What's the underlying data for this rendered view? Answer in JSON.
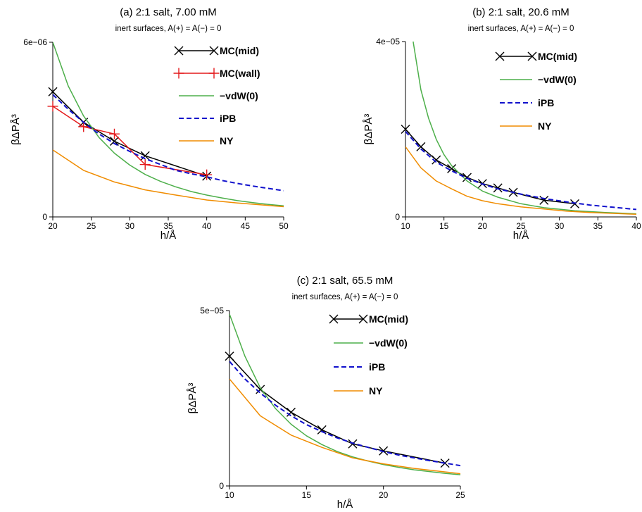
{
  "chart_data": [
    {
      "type": "line",
      "panel": "(a)",
      "title": "(a)    2:1 salt, 7.00 mM",
      "subtitle": "inert surfaces, A(+) = A(−) = 0",
      "xlabel": "h/Å",
      "ylabel": "βΔPÅ³",
      "xlim": [
        20,
        50
      ],
      "ylim": [
        0,
        6e-06
      ],
      "xticks": [
        20,
        25,
        30,
        35,
        40,
        45,
        50
      ],
      "yticks": [
        {
          "value": 0,
          "label": "0"
        },
        {
          "value": 6e-06,
          "label": "6e−06"
        }
      ],
      "legend_position": "top-right",
      "series": [
        {
          "name": "MC(mid)",
          "color": "#000000",
          "dash": "",
          "marker": "x",
          "x": [
            20,
            24,
            28,
            32,
            40
          ],
          "y": [
            4.3e-06,
            3.25e-06,
            2.6e-06,
            2.1e-06,
            1.4e-06
          ]
        },
        {
          "name": "MC(wall)",
          "color": "#e41a1c",
          "dash": "",
          "marker": "plus",
          "x": [
            20,
            24,
            28,
            32,
            40
          ],
          "y": [
            3.8e-06,
            3.1e-06,
            2.85e-06,
            1.8e-06,
            1.45e-06
          ]
        },
        {
          "name": "−vdW(0)",
          "color": "#4daf4a",
          "dash": "",
          "marker": "",
          "x": [
            20,
            22,
            24,
            26,
            28,
            30,
            32,
            34,
            36,
            38,
            40,
            42,
            44,
            46,
            48,
            50
          ],
          "y": [
            6e-06,
            4.5e-06,
            3.47e-06,
            2.73e-06,
            2.19e-06,
            1.78e-06,
            1.46e-06,
            1.22e-06,
            1.03e-06,
            8.7e-07,
            7.5e-07,
            6.5e-07,
            5.6e-07,
            4.9e-07,
            4.3e-07,
            3.8e-07
          ]
        },
        {
          "name": "iPB",
          "color": "#1010cc",
          "dash": "7,4",
          "marker": "",
          "x": [
            20,
            22,
            24,
            26,
            28,
            30,
            32,
            34,
            36,
            38,
            40,
            42,
            44,
            46,
            48,
            50
          ],
          "y": [
            4.2e-06,
            3.7e-06,
            3.25e-06,
            2.85e-06,
            2.52e-06,
            2.25e-06,
            2e-06,
            1.8e-06,
            1.6e-06,
            1.48e-06,
            1.38e-06,
            1.25e-06,
            1.15e-06,
            1.06e-06,
            9.8e-07,
            9e-07
          ]
        },
        {
          "name": "NY",
          "color": "#f08c00",
          "dash": "",
          "marker": "",
          "x": [
            20,
            24,
            28,
            32,
            36,
            40,
            44,
            50
          ],
          "y": [
            2.3e-06,
            1.6e-06,
            1.2e-06,
            9.3e-07,
            7.5e-07,
            5.8e-07,
            4.8e-07,
            3.5e-07
          ]
        }
      ]
    },
    {
      "type": "line",
      "panel": "(b)",
      "title": "(b)    2:1 salt, 20.6 mM",
      "subtitle": "inert surfaces, A(+) = A(−) = 0",
      "xlabel": "h/Å",
      "ylabel": "βΔPÅ³",
      "xlim": [
        10,
        40
      ],
      "ylim": [
        0,
        4e-05
      ],
      "xticks": [
        10,
        15,
        20,
        25,
        30,
        35,
        40
      ],
      "yticks": [
        {
          "value": 0,
          "label": "0"
        },
        {
          "value": 4e-05,
          "label": "4e−05"
        }
      ],
      "legend_position": "top-right",
      "series": [
        {
          "name": "MC(mid)",
          "color": "#000000",
          "dash": "",
          "marker": "x",
          "x": [
            10,
            12,
            14,
            16,
            18,
            20,
            22,
            24,
            28,
            32
          ],
          "y": [
            2e-05,
            1.6e-05,
            1.3e-05,
            1.1e-05,
            9e-06,
            7.6e-06,
            6.6e-06,
            5.6e-06,
            3.8e-06,
            3e-06
          ]
        },
        {
          "name": "−vdW(0)",
          "color": "#4daf4a",
          "dash": "",
          "marker": "",
          "x": [
            11,
            12,
            13,
            14,
            15,
            16,
            18,
            20,
            22,
            25,
            28,
            32,
            36,
            40
          ],
          "y": [
            4e-05,
            2.9e-05,
            2.25e-05,
            1.77e-05,
            1.42e-05,
            1.17e-05,
            8.2e-06,
            5.9e-06,
            4.5e-06,
            3e-06,
            2.1e-06,
            1.4e-06,
            1e-06,
            7e-07
          ]
        },
        {
          "name": "iPB",
          "color": "#1010cc",
          "dash": "7,4",
          "marker": "",
          "x": [
            10,
            12,
            14,
            16,
            18,
            20,
            22,
            25,
            28,
            31,
            34,
            37,
            40
          ],
          "y": [
            1.95e-05,
            1.55e-05,
            1.25e-05,
            1.05e-05,
            8.8e-06,
            7.5e-06,
            6.4e-06,
            5.2e-06,
            4.2e-06,
            3.4e-06,
            2.7e-06,
            2.2e-06,
            1.7e-06
          ]
        },
        {
          "name": "NY",
          "color": "#f08c00",
          "dash": "",
          "marker": "",
          "x": [
            10,
            12,
            14,
            16,
            18,
            20,
            22,
            25,
            28,
            31,
            34,
            37,
            40
          ],
          "y": [
            1.6e-05,
            1.12e-05,
            8.2e-06,
            6.4e-06,
            4.7e-06,
            3.7e-06,
            3e-06,
            2.3e-06,
            1.8e-06,
            1.3e-06,
            1e-06,
            8e-07,
            6e-07
          ]
        }
      ]
    },
    {
      "type": "line",
      "panel": "(c)",
      "title": "(c)    2:1 salt, 65.5 mM",
      "subtitle": "inert surfaces, A(+) = A(−) = 0",
      "xlabel": "h/Å",
      "ylabel": "βΔPÅ³",
      "xlim": [
        10,
        25
      ],
      "ylim": [
        0,
        5e-05
      ],
      "xticks": [
        10,
        15,
        20,
        25
      ],
      "yticks": [
        {
          "value": 0,
          "label": "0"
        },
        {
          "value": 5e-05,
          "label": "5e−05"
        }
      ],
      "legend_position": "top-right",
      "series": [
        {
          "name": "MC(mid)",
          "color": "#000000",
          "dash": "",
          "marker": "x",
          "x": [
            10,
            12,
            14,
            16,
            18,
            20,
            24
          ],
          "y": [
            3.7e-05,
            2.75e-05,
            2.1e-05,
            1.6e-05,
            1.2e-05,
            1e-05,
            6.5e-06
          ]
        },
        {
          "name": "−vdW(0)",
          "color": "#4daf4a",
          "dash": "",
          "marker": "",
          "x": [
            10,
            11,
            12,
            13,
            14,
            15,
            16,
            17,
            18,
            19,
            20,
            21,
            22,
            23,
            24,
            25
          ],
          "y": [
            4.9e-05,
            3.7e-05,
            2.8e-05,
            2.2e-05,
            1.76e-05,
            1.43e-05,
            1.18e-05,
            9.8e-06,
            8.3e-06,
            7.1e-06,
            6.1e-06,
            5.3e-06,
            4.6e-06,
            4.1e-06,
            3.6e-06,
            3.2e-06
          ]
        },
        {
          "name": "iPB",
          "color": "#1010cc",
          "dash": "7,4",
          "marker": "",
          "x": [
            10,
            11,
            12,
            13,
            14,
            15,
            16,
            17,
            18,
            19,
            20,
            21,
            22,
            23,
            24,
            25
          ],
          "y": [
            3.55e-05,
            3.05e-05,
            2.65e-05,
            2.3e-05,
            2e-05,
            1.75e-05,
            1.55e-05,
            1.37e-05,
            1.22e-05,
            1.1e-05,
            9.8e-06,
            8.8e-06,
            8e-06,
            7.2e-06,
            6.5e-06,
            5.8e-06
          ]
        },
        {
          "name": "NY",
          "color": "#f08c00",
          "dash": "",
          "marker": "",
          "x": [
            10,
            12,
            14,
            16,
            18,
            20,
            22,
            25
          ],
          "y": [
            3.05e-05,
            2e-05,
            1.45e-05,
            1.1e-05,
            8e-06,
            6.3e-06,
            5e-06,
            3.5e-06
          ]
        }
      ]
    }
  ]
}
